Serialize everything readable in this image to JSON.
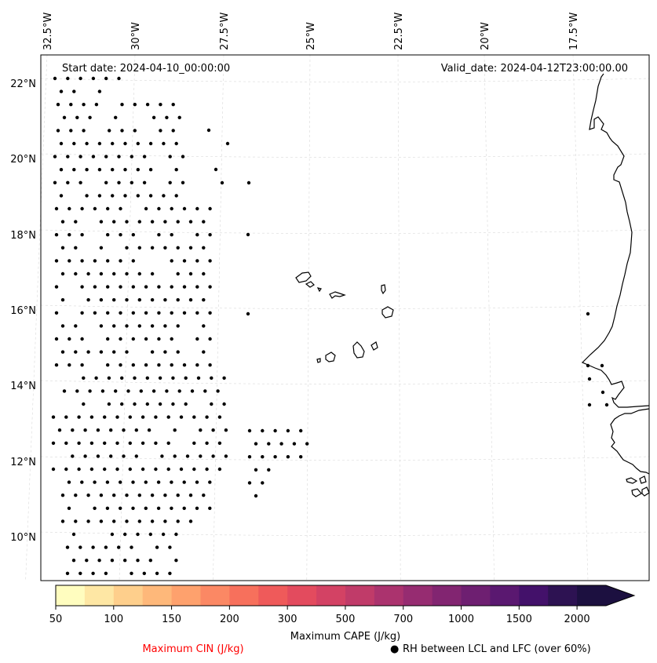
{
  "map": {
    "start_date": "Start date: 2024-04-10_00:00:00",
    "valid_date": "Valid_date: 2024-04-12T23:00:00.00",
    "lon_labels": [
      "32.5°W",
      "30°W",
      "27.5°W",
      "25°W",
      "22.5°W",
      "20°W",
      "17.5°W"
    ],
    "lat_labels": [
      "22°N",
      "20°N",
      "18°N",
      "16°N",
      "14°N",
      "12°N",
      "10°N"
    ],
    "extent": {
      "lon_min": -33.0,
      "lon_max": -16.5,
      "lat_min": 9.0,
      "lat_max": 22.7
    },
    "gridlines": true,
    "marker_color": "#000000",
    "coast_color": "#000000"
  },
  "colorbar": {
    "title": "Maximum CAPE (J/kg)",
    "levels": [
      50,
      75,
      100,
      125,
      150,
      175,
      200,
      250,
      300,
      400,
      500,
      600,
      700,
      800,
      1000,
      1250,
      1500,
      1750,
      2000
    ],
    "tick_labels": [
      "50",
      "100",
      "150",
      "200",
      "300",
      "500",
      "700",
      "1000",
      "1500",
      "2000"
    ],
    "colors": [
      "#fffdbf",
      "#fee7a4",
      "#fecf8c",
      "#feb87a",
      "#fea16d",
      "#fb8864",
      "#f7705c",
      "#ef5a5a",
      "#e34b5e",
      "#d34264",
      "#c03b69",
      "#ab336e",
      "#962c71",
      "#822571",
      "#6e1f71",
      "#5a1870",
      "#43116a",
      "#2d1252",
      "#1c1040"
    ],
    "extend": "max"
  },
  "legend": {
    "cin_label": "Maximum CIN (J/kg)",
    "cin_color": "#ff0000",
    "rh_marker": "●",
    "rh_label": "RH between LCL and LFC (over 60%)"
  }
}
